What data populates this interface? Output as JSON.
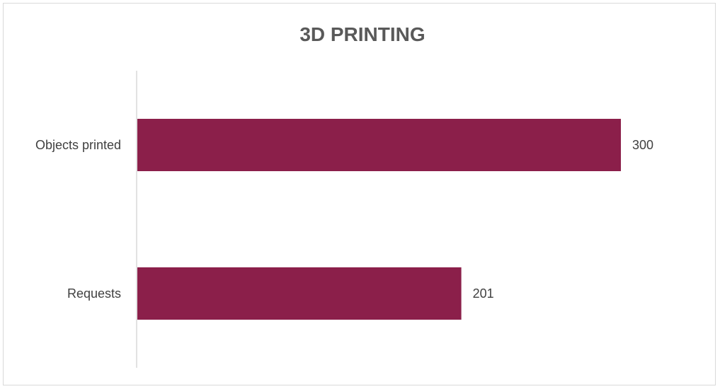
{
  "chart_data": {
    "type": "bar",
    "orientation": "horizontal",
    "title": "3D PRINTING",
    "categories": [
      "Objects printed",
      "Requests"
    ],
    "values": [
      300,
      201
    ],
    "xlabel": "",
    "ylabel": "",
    "xlim": [
      0,
      300
    ],
    "grid": false,
    "legend": "none",
    "data_labels": true,
    "bar_color": "#8B1F4A",
    "axis_color": "#d9d9d9"
  }
}
